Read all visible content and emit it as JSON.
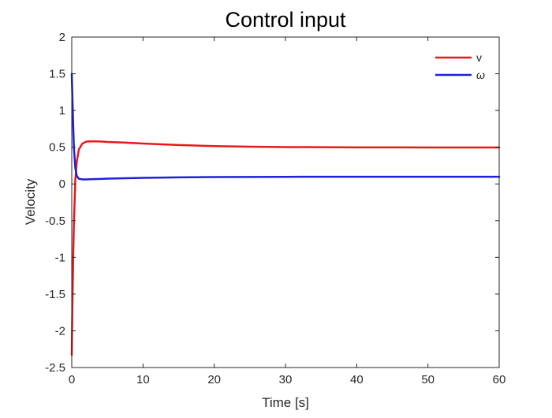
{
  "chart_data": {
    "type": "line",
    "title": "Control input",
    "xlabel": "Time [s]",
    "ylabel": "Velocity",
    "xlim": [
      0,
      60
    ],
    "ylim": [
      -2.5,
      2
    ],
    "xticks": [
      0,
      10,
      20,
      30,
      40,
      50,
      60
    ],
    "xtick_labels": [
      "0",
      "10",
      "20",
      "30",
      "40",
      "50",
      "60"
    ],
    "yticks": [
      -2.5,
      -2,
      -1.5,
      -1,
      -0.5,
      0,
      0.5,
      1,
      1.5,
      2
    ],
    "ytick_labels": [
      "-2.5",
      "-2",
      "-1.5",
      "-1",
      "-0.5",
      "0",
      "0.5",
      "1",
      "1.5",
      "2"
    ],
    "grid": false,
    "legend_position": "top-right",
    "series": [
      {
        "name": "v",
        "color": "#e8191c",
        "x": [
          0,
          0.1,
          0.2,
          0.3,
          0.5,
          0.7,
          1.0,
          1.5,
          2,
          2.5,
          3,
          4,
          5,
          7,
          10,
          15,
          20,
          25,
          30,
          35,
          40,
          50,
          60
        ],
        "y": [
          -2.33,
          -1.6,
          -1.0,
          -0.55,
          0.05,
          0.3,
          0.47,
          0.55,
          0.575,
          0.58,
          0.58,
          0.578,
          0.572,
          0.565,
          0.55,
          0.53,
          0.515,
          0.507,
          0.502,
          0.5,
          0.498,
          0.497,
          0.497
        ]
      },
      {
        "name": "ω",
        "color": "#1f1fdc",
        "x": [
          0,
          0.1,
          0.2,
          0.3,
          0.5,
          0.7,
          1.0,
          1.5,
          2,
          3,
          5,
          10,
          15,
          20,
          30,
          40,
          50,
          60
        ],
        "y": [
          1.5,
          1.15,
          0.8,
          0.5,
          0.22,
          0.11,
          0.07,
          0.062,
          0.062,
          0.065,
          0.072,
          0.083,
          0.09,
          0.094,
          0.097,
          0.098,
          0.098,
          0.098
        ]
      }
    ]
  }
}
